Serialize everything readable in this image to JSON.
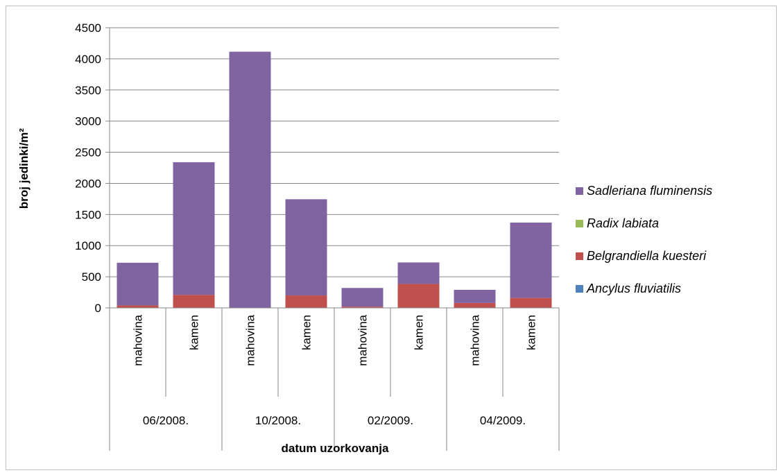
{
  "chart_data": {
    "type": "bar",
    "stacked": true,
    "ylabel": "broj jedinki/m²",
    "xlabel": "datum uzorkovanja",
    "ylim": [
      0,
      4500
    ],
    "yticks": [
      0,
      500,
      1000,
      1500,
      2000,
      2500,
      3000,
      3500,
      4000,
      4500
    ],
    "grid": true,
    "legend_position": "right",
    "categories": [
      "mahovina",
      "kamen",
      "mahovina",
      "kamen",
      "mahovina",
      "kamen",
      "mahovina",
      "kamen"
    ],
    "groups": [
      {
        "label": "06/2008.",
        "span": 2
      },
      {
        "label": "10/2008.",
        "span": 2
      },
      {
        "label": "02/2009.",
        "span": 2
      },
      {
        "label": "04/2009.",
        "span": 2
      }
    ],
    "series": [
      {
        "name": "Ancylus fluviatilis",
        "color": "#4F81BD",
        "values": [
          0,
          0,
          0,
          0,
          0,
          0,
          0,
          0
        ]
      },
      {
        "name": "Belgrandiella kuesteri",
        "color": "#C0504D",
        "values": [
          40,
          210,
          0,
          200,
          20,
          385,
          80,
          160
        ]
      },
      {
        "name": "Radix labiata",
        "color": "#9BBB59",
        "values": [
          0,
          0,
          0,
          0,
          0,
          0,
          0,
          0
        ]
      },
      {
        "name": "Sadleriana fluminensis",
        "color": "#8064A2",
        "values": [
          685,
          2130,
          4115,
          1545,
          300,
          345,
          210,
          1210
        ]
      }
    ],
    "legend_order": [
      "Sadleriana fluminensis",
      "Radix labiata",
      "Belgrandiella kuesteri",
      "Ancylus fluviatilis"
    ]
  }
}
